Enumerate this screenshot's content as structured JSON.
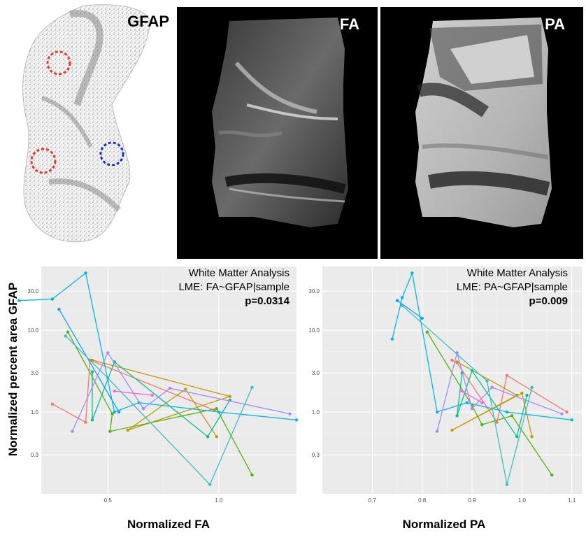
{
  "images": {
    "gfap": {
      "label": "GFAP"
    },
    "fa": {
      "label": "FA"
    },
    "pa": {
      "label": "PA"
    }
  },
  "shared_ylabel": "Normalized percent area GFAP",
  "chart_data": [
    {
      "type": "line",
      "id": "fa",
      "title": "White Matter Analysis",
      "subtitle": "LME: FA~GFAP|sample",
      "stat": "p=0.0314",
      "xlabel": "Normalized FA",
      "ylabel": "Normalized percent area GFAP",
      "xlim": [
        0.2,
        1.35
      ],
      "ylim": [
        0.1,
        60
      ],
      "yscale": "log",
      "x_ticks": [
        0.5,
        1.0
      ],
      "x_tick_labels": [
        "0.5",
        "1.0"
      ],
      "y_ticks": [
        0.3,
        1.0,
        3.0,
        10.0,
        30.0
      ],
      "y_tick_labels": [
        "0.3",
        "1.0",
        "3.0",
        "10.0",
        "30.0"
      ],
      "grid": true,
      "series": [
        {
          "name": "s1",
          "color": "#F8766D",
          "points": [
            [
              0.25,
              1.25
            ],
            [
              0.4,
              0.75
            ],
            [
              0.42,
              4.3
            ],
            [
              0.98,
              1.05
            ]
          ]
        },
        {
          "name": "s2",
          "color": "#C49A00",
          "points": [
            [
              0.43,
              4.3
            ],
            [
              1.05,
              1.55
            ],
            [
              0.59,
              0.6
            ],
            [
              0.85,
              1.9
            ],
            [
              0.99,
              0.5
            ]
          ]
        },
        {
          "name": "s3",
          "color": "#53B400",
          "points": [
            [
              0.32,
              9.5
            ],
            [
              0.52,
              0.95
            ],
            [
              0.51,
              0.58
            ],
            [
              0.99,
              1.1
            ],
            [
              1.15,
              0.17
            ]
          ]
        },
        {
          "name": "s4",
          "color": "#00C094",
          "points": [
            [
              0.43,
              3.1
            ],
            [
              0.43,
              0.8
            ],
            [
              0.53,
              4.1
            ],
            [
              0.95,
              0.5
            ],
            [
              1.05,
              1.4
            ]
          ]
        },
        {
          "name": "s5",
          "color": "#00B6EB",
          "points": [
            [
              0.1,
              23
            ],
            [
              0.25,
              24
            ],
            [
              0.4,
              50
            ],
            [
              0.53,
              1.0
            ],
            [
              0.64,
              1.3
            ],
            [
              1.0,
              1.0
            ],
            [
              1.35,
              0.8
            ]
          ]
        },
        {
          "name": "s6",
          "color": "#06A4FF",
          "points": [
            [
              0.28,
              18
            ],
            [
              0.55,
              1.0
            ]
          ]
        },
        {
          "name": "s7",
          "color": "#A58AFF",
          "points": [
            [
              0.34,
              0.58
            ],
            [
              0.5,
              5.3
            ],
            [
              0.66,
              1.1
            ],
            [
              0.78,
              1.95
            ],
            [
              1.32,
              0.95
            ]
          ]
        },
        {
          "name": "s8",
          "color": "#FB61D7",
          "points": [
            [
              0.53,
              1.8
            ],
            [
              0.7,
              1.6
            ]
          ]
        },
        {
          "name": "s9",
          "color": "#38BFC4",
          "points": [
            [
              0.31,
              8.5
            ],
            [
              0.5,
              2.6
            ],
            [
              0.96,
              0.13
            ],
            [
              1.15,
              2.0
            ]
          ]
        }
      ]
    },
    {
      "type": "line",
      "id": "pa",
      "title": "White Matter Analysis",
      "subtitle": "LME: PA~GFAP|sample",
      "stat": "p=0.009",
      "xlabel": "Normalized PA",
      "ylabel": "Normalized percent area GFAP",
      "xlim": [
        0.6,
        1.12
      ],
      "ylim": [
        0.1,
        60
      ],
      "yscale": "log",
      "x_ticks": [
        0.7,
        0.8,
        0.9,
        1.0,
        1.1
      ],
      "x_tick_labels": [
        "0.7",
        "0.8",
        "0.9",
        "1.0",
        "1.1"
      ],
      "y_ticks": [
        0.3,
        1.0,
        3.0,
        10.0,
        30.0
      ],
      "y_tick_labels": [
        "0.3",
        "1.0",
        "3.0",
        "10.0",
        "30.0"
      ],
      "grid": true,
      "series": [
        {
          "name": "s1",
          "color": "#F8766D",
          "points": [
            [
              0.86,
              4.3
            ],
            [
              0.87,
              4.0
            ],
            [
              0.95,
              0.75
            ],
            [
              0.97,
              2.8
            ],
            [
              1.09,
              1.0
            ]
          ]
        },
        {
          "name": "s2",
          "color": "#C49A00",
          "points": [
            [
              0.87,
              4.1
            ],
            [
              0.99,
              1.6
            ],
            [
              0.86,
              0.6
            ],
            [
              1.0,
              1.7
            ],
            [
              1.02,
              0.5
            ]
          ]
        },
        {
          "name": "s3",
          "color": "#53B400",
          "points": [
            [
              0.81,
              9.5
            ],
            [
              0.9,
              1.2
            ],
            [
              0.92,
              0.7
            ],
            [
              0.98,
              0.9
            ],
            [
              1.06,
              0.17
            ]
          ]
        },
        {
          "name": "s4",
          "color": "#00C094",
          "points": [
            [
              0.88,
              3.0
            ],
            [
              0.87,
              0.9
            ],
            [
              0.9,
              3.2
            ],
            [
              0.99,
              0.5
            ],
            [
              1.01,
              1.6
            ]
          ]
        },
        {
          "name": "s5",
          "color": "#00B6EB",
          "points": [
            [
              0.74,
              7.8
            ],
            [
              0.76,
              25
            ],
            [
              0.78,
              50
            ],
            [
              0.83,
              1.0
            ],
            [
              0.89,
              1.3
            ],
            [
              0.97,
              1.0
            ],
            [
              1.1,
              0.8
            ]
          ]
        },
        {
          "name": "s6",
          "color": "#06A4FF",
          "points": [
            [
              0.75,
              23
            ],
            [
              0.8,
              14
            ]
          ]
        },
        {
          "name": "s7",
          "color": "#A58AFF",
          "points": [
            [
              0.83,
              0.58
            ],
            [
              0.87,
              5.3
            ],
            [
              0.9,
              1.1
            ],
            [
              0.94,
              2.0
            ],
            [
              1.08,
              0.95
            ]
          ]
        },
        {
          "name": "s8",
          "color": "#FB61D7",
          "points": [
            [
              0.88,
              1.8
            ],
            [
              0.92,
              1.3
            ]
          ]
        },
        {
          "name": "s9",
          "color": "#38BFC4",
          "points": [
            [
              0.76,
              20
            ],
            [
              0.93,
              2.4
            ],
            [
              0.97,
              0.13
            ],
            [
              1.02,
              2.0
            ]
          ]
        }
      ]
    }
  ]
}
